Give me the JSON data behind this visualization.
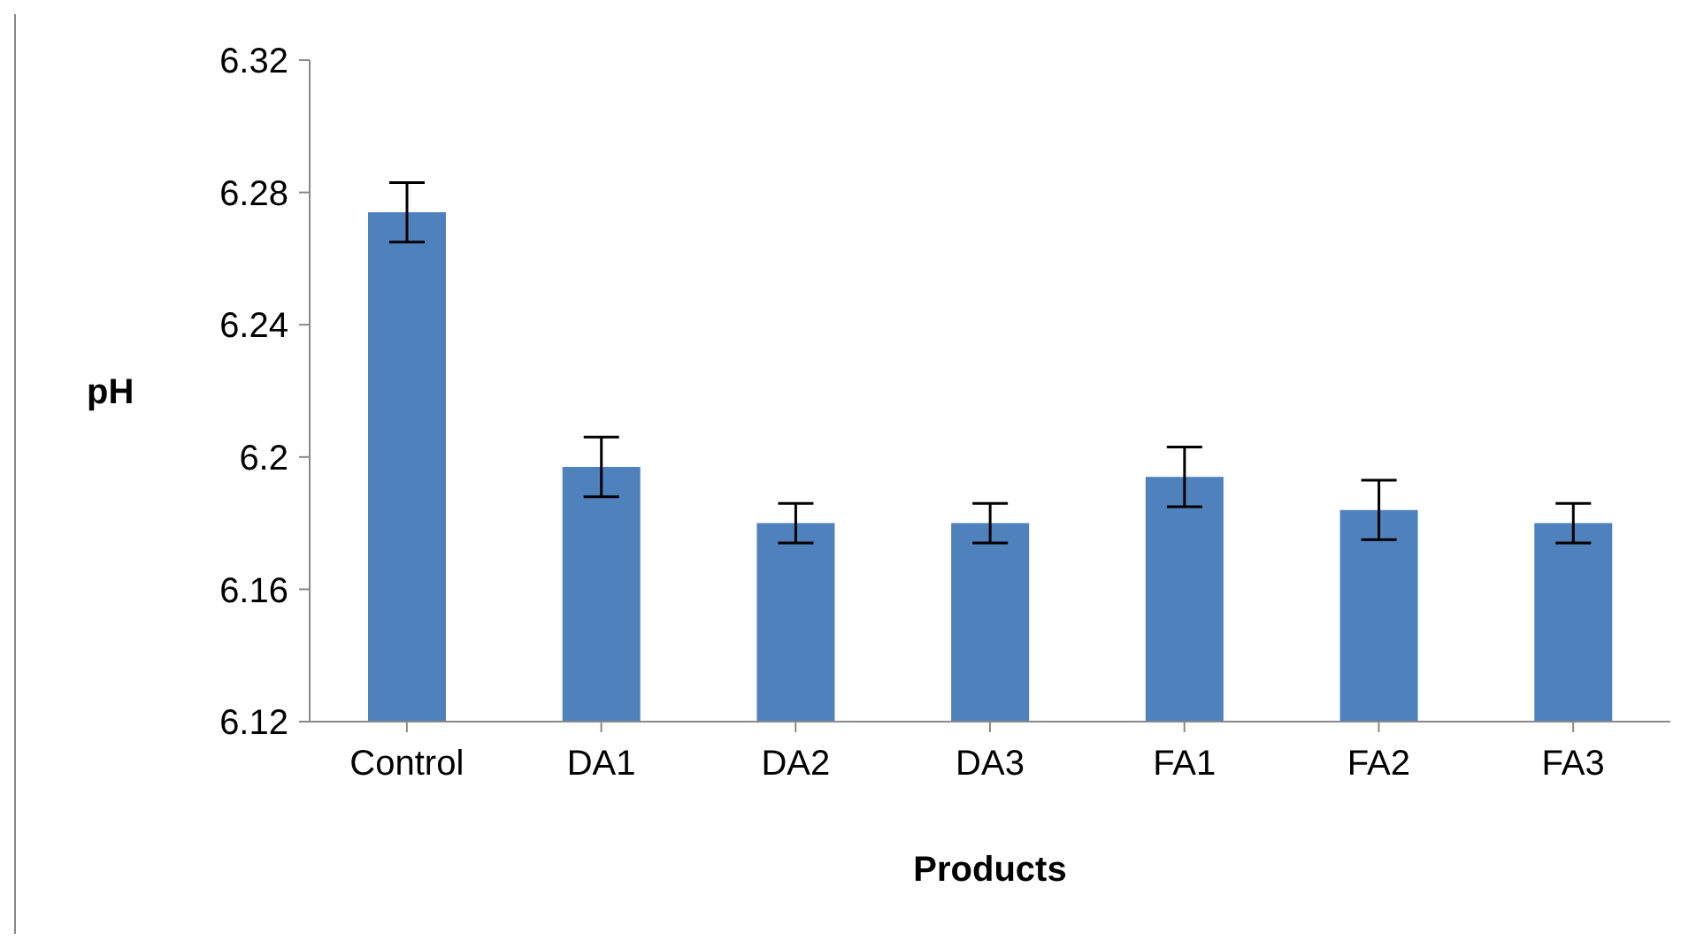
{
  "chart_data": {
    "type": "bar",
    "xlabel": "Products",
    "ylabel": "pH",
    "categories": [
      "Control",
      "DA1",
      "DA2",
      "DA3",
      "FA1",
      "FA2",
      "FA3"
    ],
    "values": [
      6.274,
      6.197,
      6.18,
      6.18,
      6.194,
      6.184,
      6.18
    ],
    "errors": [
      0.009,
      0.009,
      0.006,
      0.006,
      0.009,
      0.009,
      0.006
    ],
    "color": "#4f81bd",
    "ylim": [
      6.12,
      6.32
    ],
    "yticks": [
      6.12,
      6.16,
      {
        "value": 6.2,
        "label": "6.2"
      },
      6.24,
      6.28,
      6.32
    ],
    "grid": false,
    "legend": false
  }
}
